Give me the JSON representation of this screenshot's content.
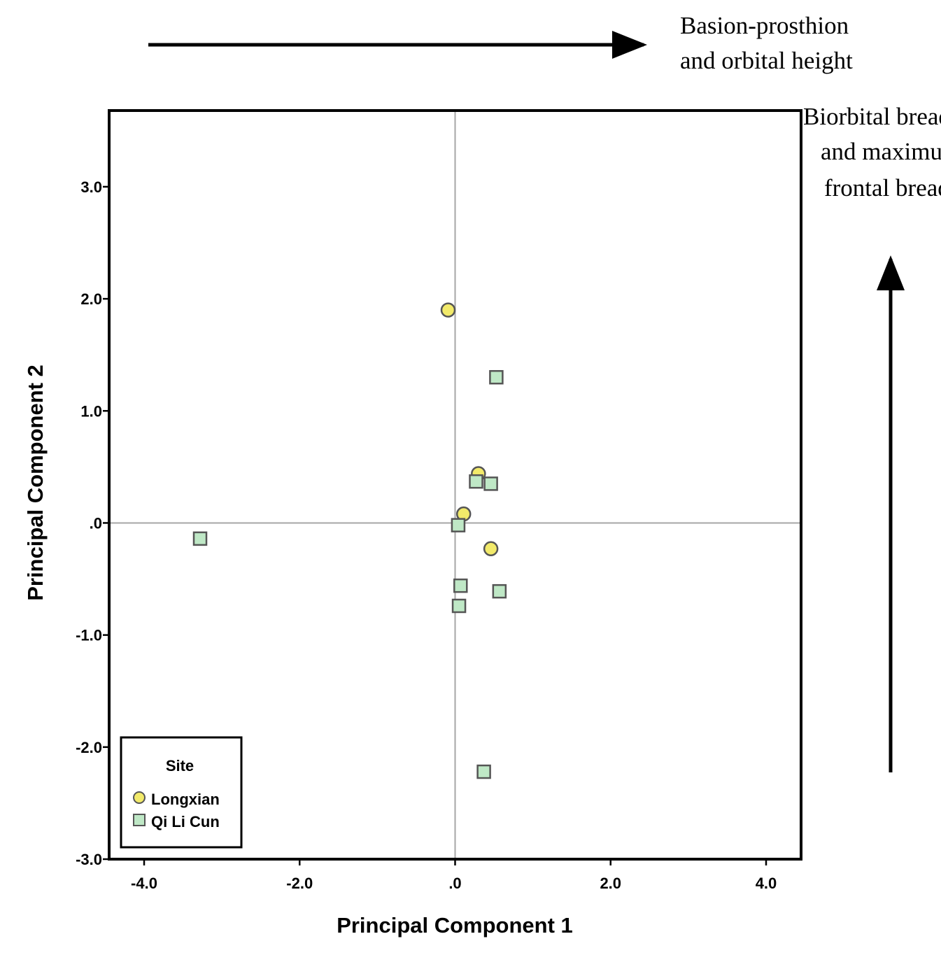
{
  "chart_data": {
    "type": "scatter",
    "title": "",
    "xlabel": "Principal Component 1",
    "ylabel": "Principal Component 2",
    "xlim": [
      -4.45,
      4.45
    ],
    "ylim": [
      -3.0,
      3.68
    ],
    "xticks": [
      {
        "value": -4.0,
        "label": "-4.0"
      },
      {
        "value": -2.0,
        "label": "-2.0"
      },
      {
        "value": 0.0,
        "label": ".0"
      },
      {
        "value": 2.0,
        "label": "2.0"
      },
      {
        "value": 4.0,
        "label": "4.0"
      }
    ],
    "yticks": [
      {
        "value": 3.0,
        "label": "3.0"
      },
      {
        "value": 2.0,
        "label": "2.0"
      },
      {
        "value": 1.0,
        "label": "1.0"
      },
      {
        "value": 0.0,
        "label": ".0"
      },
      {
        "value": -1.0,
        "label": "-1.0"
      },
      {
        "value": -2.0,
        "label": "-2.0"
      },
      {
        "value": -3.0,
        "label": "-3.0"
      }
    ],
    "reference_lines": {
      "x": 0.0,
      "y": 0.0
    },
    "grid": false,
    "legend": {
      "title": "Site",
      "position": "bottom-left"
    },
    "series": [
      {
        "name": "Longxian",
        "marker": "circle",
        "color": "#f2ea6a",
        "points": [
          {
            "x": -0.09,
            "y": 1.9
          },
          {
            "x": 0.3,
            "y": 0.44
          },
          {
            "x": 0.11,
            "y": 0.08
          },
          {
            "x": 0.46,
            "y": -0.23
          }
        ]
      },
      {
        "name": "Qi Li Cun",
        "marker": "square",
        "color": "#bfe8c6",
        "points": [
          {
            "x": 0.53,
            "y": 1.3
          },
          {
            "x": 0.27,
            "y": 0.37
          },
          {
            "x": 0.46,
            "y": 0.35
          },
          {
            "x": 0.04,
            "y": -0.02
          },
          {
            "x": -3.28,
            "y": -0.14
          },
          {
            "x": 0.07,
            "y": -0.56
          },
          {
            "x": 0.57,
            "y": -0.61
          },
          {
            "x": 0.05,
            "y": -0.74
          },
          {
            "x": 0.37,
            "y": -2.22
          }
        ]
      }
    ],
    "annotations": {
      "x_direction": [
        "Basion-prosthion",
        "and orbital height"
      ],
      "y_direction": [
        "Biorbital breadth",
        "and maximum",
        "frontal breadth"
      ]
    }
  }
}
